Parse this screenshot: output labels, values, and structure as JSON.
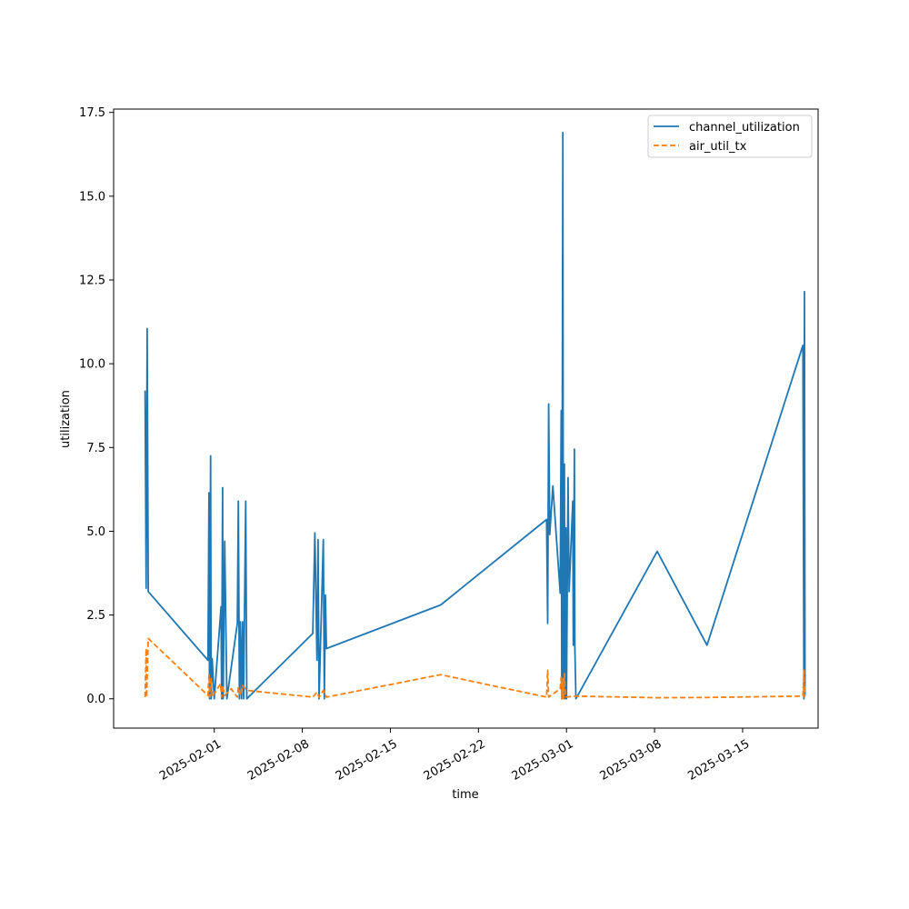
{
  "chart_data": {
    "type": "line",
    "xlabel": "time",
    "ylabel": "utilization",
    "x_axis_type": "date",
    "xlim": [
      "2025-01-24",
      "2025-03-21"
    ],
    "ylim": [
      -0.875,
      17.6
    ],
    "x_ticks": [
      "2025-02-01",
      "2025-02-08",
      "2025-02-15",
      "2025-02-22",
      "2025-03-01",
      "2025-03-08",
      "2025-03-15"
    ],
    "y_ticks": [
      0.0,
      2.5,
      5.0,
      7.5,
      10.0,
      12.5,
      15.0,
      17.5
    ],
    "y_tick_labels": [
      "0.0",
      "2.5",
      "5.0",
      "7.5",
      "10.0",
      "12.5",
      "15.0",
      "17.5"
    ],
    "grid": false,
    "legend_position": "upper right",
    "series": [
      {
        "name": "channel_utilization",
        "color": "#1f77b4",
        "dash": "solid",
        "points": [
          [
            "2025-01-26 12:00",
            9.2
          ],
          [
            "2025-01-26 14:00",
            3.3
          ],
          [
            "2025-01-26 16:00",
            11.05
          ],
          [
            "2025-01-26 18:00",
            3.2
          ],
          [
            "2025-01-31 12:00",
            1.15
          ],
          [
            "2025-01-31 14:00",
            6.15
          ],
          [
            "2025-01-31 15:00",
            0.0
          ],
          [
            "2025-01-31 17:00",
            7.25
          ],
          [
            "2025-01-31 18:00",
            0.0
          ],
          [
            "2025-01-31 20:00",
            1.2
          ],
          [
            "2025-02-01 00:00",
            0.0
          ],
          [
            "2025-02-01 13:00",
            2.75
          ],
          [
            "2025-02-01 14:00",
            0.0
          ],
          [
            "2025-02-01 16:00",
            6.3
          ],
          [
            "2025-02-01 17:00",
            0.0
          ],
          [
            "2025-02-01 20:00",
            4.7
          ],
          [
            "2025-02-02 00:00",
            0.0
          ],
          [
            "2025-02-02 20:00",
            2.25
          ],
          [
            "2025-02-02 22:00",
            5.9
          ],
          [
            "2025-02-03 00:00",
            0.0
          ],
          [
            "2025-02-03 02:00",
            2.3
          ],
          [
            "2025-02-03 04:00",
            0.0
          ],
          [
            "2025-02-03 06:00",
            2.3
          ],
          [
            "2025-02-03 08:00",
            0.0
          ],
          [
            "2025-02-03 12:00",
            5.9
          ],
          [
            "2025-02-03 14:00",
            0.0
          ],
          [
            "2025-02-08 20:00",
            1.95
          ],
          [
            "2025-02-09 00:00",
            4.95
          ],
          [
            "2025-02-09 04:00",
            1.15
          ],
          [
            "2025-02-09 06:00",
            4.75
          ],
          [
            "2025-02-09 08:00",
            0.0
          ],
          [
            "2025-02-09 16:00",
            4.75
          ],
          [
            "2025-02-09 18:00",
            0.0
          ],
          [
            "2025-02-09 20:00",
            3.1
          ],
          [
            "2025-02-09 22:00",
            1.5
          ],
          [
            "2025-02-19 00:00",
            2.8
          ],
          [
            "2025-02-27 10:00",
            5.35
          ],
          [
            "2025-02-27 12:00",
            2.25
          ],
          [
            "2025-02-27 14:00",
            8.8
          ],
          [
            "2025-02-27 16:00",
            4.9
          ],
          [
            "2025-02-27 22:00",
            6.35
          ],
          [
            "2025-02-28 12:00",
            3.15
          ],
          [
            "2025-02-28 14:00",
            8.6
          ],
          [
            "2025-02-28 15:00",
            0.0
          ],
          [
            "2025-02-28 17:00",
            16.9
          ],
          [
            "2025-02-28 18:00",
            0.0
          ],
          [
            "2025-02-28 20:00",
            7.0
          ],
          [
            "2025-02-28 21:00",
            0.0
          ],
          [
            "2025-02-28 23:00",
            5.1
          ],
          [
            "2025-03-01 00:00",
            0.0
          ],
          [
            "2025-03-01 03:00",
            6.6
          ],
          [
            "2025-03-01 05:00",
            3.2
          ],
          [
            "2025-03-01 12:00",
            5.9
          ],
          [
            "2025-03-01 13:00",
            1.6
          ],
          [
            "2025-03-01 15:00",
            7.45
          ],
          [
            "2025-03-01 16:00",
            1.55
          ],
          [
            "2025-03-01 18:00",
            0.0
          ],
          [
            "2025-03-08 05:00",
            4.4
          ],
          [
            "2025-03-12 04:00",
            1.6
          ],
          [
            "2025-03-19 19:00",
            10.55
          ],
          [
            "2025-03-19 21:00",
            0.0
          ],
          [
            "2025-03-19 22:00",
            12.15
          ],
          [
            "2025-03-19 23:00",
            0.1
          ]
        ]
      },
      {
        "name": "air_util_tx",
        "color": "#ff7f0e",
        "dash": "dashed",
        "points": [
          [
            "2025-01-26 12:00",
            0.05
          ],
          [
            "2025-01-26 14:00",
            1.5
          ],
          [
            "2025-01-26 15:00",
            0.05
          ],
          [
            "2025-01-26 18:00",
            1.8
          ],
          [
            "2025-01-31 12:00",
            0.1
          ],
          [
            "2025-01-31 14:00",
            0.7
          ],
          [
            "2025-01-31 16:00",
            0.05
          ],
          [
            "2025-01-31 18:00",
            0.6
          ],
          [
            "2025-01-31 20:00",
            0.05
          ],
          [
            "2025-02-01 12:00",
            0.45
          ],
          [
            "2025-02-01 14:00",
            0.05
          ],
          [
            "2025-02-01 16:00",
            0.4
          ],
          [
            "2025-02-01 20:00",
            0.1
          ],
          [
            "2025-02-02 08:00",
            0.3
          ],
          [
            "2025-02-02 20:00",
            0.05
          ],
          [
            "2025-02-02 22:00",
            0.35
          ],
          [
            "2025-02-03 02:00",
            0.1
          ],
          [
            "2025-02-03 06:00",
            0.4
          ],
          [
            "2025-02-03 14:00",
            0.25
          ],
          [
            "2025-02-08 20:00",
            0.05
          ],
          [
            "2025-02-09 04:00",
            0.2
          ],
          [
            "2025-02-09 08:00",
            0.05
          ],
          [
            "2025-02-09 16:00",
            0.25
          ],
          [
            "2025-02-09 22:00",
            0.05
          ],
          [
            "2025-02-19 00:00",
            0.72
          ],
          [
            "2025-02-27 10:00",
            0.05
          ],
          [
            "2025-02-27 12:00",
            0.85
          ],
          [
            "2025-02-27 14:00",
            0.05
          ],
          [
            "2025-02-28 12:00",
            0.3
          ],
          [
            "2025-02-28 14:00",
            0.65
          ],
          [
            "2025-02-28 15:00",
            0.0
          ],
          [
            "2025-02-28 17:00",
            0.6
          ],
          [
            "2025-02-28 18:00",
            0.0
          ],
          [
            "2025-02-28 20:00",
            0.75
          ],
          [
            "2025-02-28 22:00",
            0.05
          ],
          [
            "2025-03-01 18:00",
            0.08
          ],
          [
            "2025-03-08 05:00",
            0.03
          ],
          [
            "2025-03-12 04:00",
            0.04
          ],
          [
            "2025-03-19 19:00",
            0.08
          ],
          [
            "2025-03-19 21:00",
            0.85
          ],
          [
            "2025-03-19 22:00",
            0.05
          ],
          [
            "2025-03-19 23:00",
            0.45
          ]
        ]
      }
    ]
  }
}
